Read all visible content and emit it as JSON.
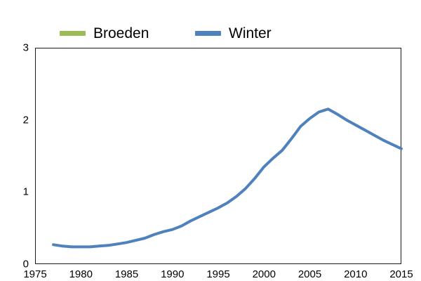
{
  "legend": {
    "items": [
      {
        "label": "Broeden",
        "color": "#9bbb59"
      },
      {
        "label": "Winter",
        "color": "#4f81bd"
      }
    ]
  },
  "colors": {
    "axis_border": "#1a1a1a",
    "tick_text": "#000000",
    "background": "#ffffff",
    "broeden_green": "#9bbb59",
    "winter_blue": "#4f81bd"
  },
  "chart_data": {
    "type": "line",
    "title": "",
    "xlabel": "",
    "ylabel": "",
    "xlim": [
      1975,
      2015
    ],
    "ylim": [
      0,
      3
    ],
    "x_ticks": [
      1975,
      1980,
      1985,
      1990,
      1995,
      2000,
      2005,
      2010,
      2015
    ],
    "y_ticks": [
      0,
      1,
      2,
      3
    ],
    "grid": false,
    "legend_position": "top",
    "line_width": 4,
    "series": [
      {
        "name": "Broeden",
        "color": "#9bbb59",
        "x": [],
        "values": []
      },
      {
        "name": "Winter",
        "color": "#4f81bd",
        "x": [
          1977,
          1978,
          1979,
          1980,
          1981,
          1982,
          1983,
          1984,
          1985,
          1986,
          1987,
          1988,
          1989,
          1990,
          1991,
          1992,
          1993,
          1994,
          1995,
          1996,
          1997,
          1998,
          1999,
          2000,
          2001,
          2002,
          2003,
          2004,
          2005,
          2006,
          2007,
          2008,
          2009,
          2010,
          2011,
          2012,
          2013,
          2014,
          2015
        ],
        "values": [
          0.27,
          0.25,
          0.24,
          0.24,
          0.24,
          0.25,
          0.26,
          0.28,
          0.3,
          0.33,
          0.36,
          0.41,
          0.45,
          0.48,
          0.53,
          0.6,
          0.66,
          0.72,
          0.78,
          0.85,
          0.94,
          1.05,
          1.19,
          1.35,
          1.47,
          1.58,
          1.74,
          1.91,
          2.02,
          2.11,
          2.15,
          2.08,
          2.0,
          1.93,
          1.86,
          1.79,
          1.72,
          1.66,
          1.6
        ]
      }
    ]
  }
}
